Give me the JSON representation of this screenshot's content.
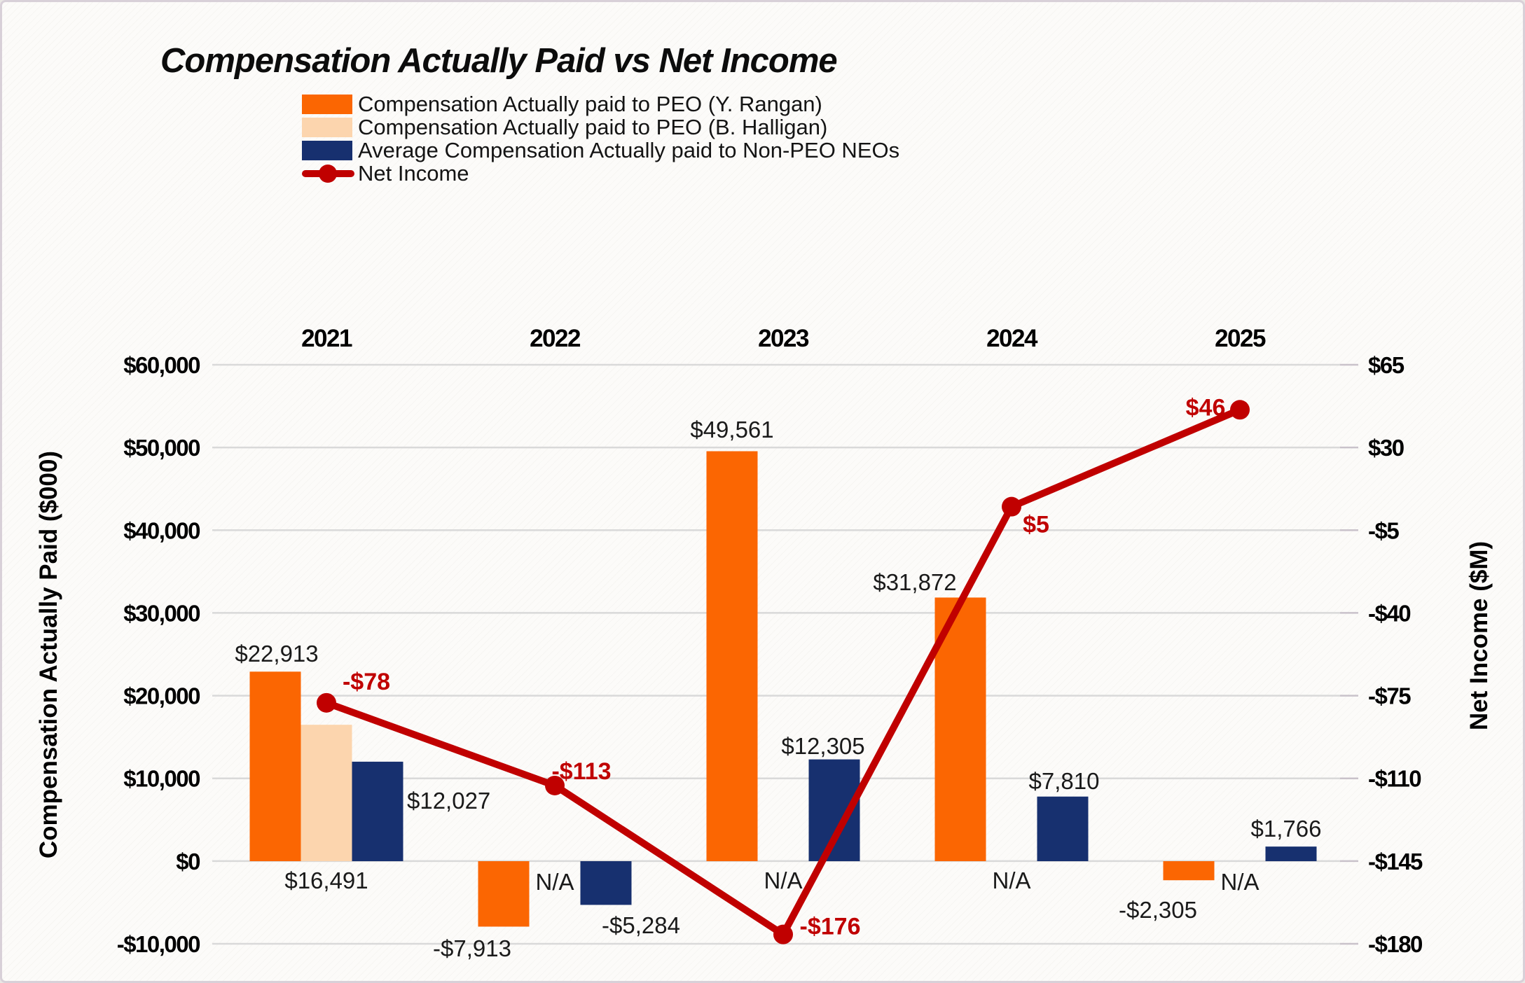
{
  "title": "Compensation Actually Paid vs Net Income",
  "colors": {
    "peo_rangan": "#FB6602",
    "peo_halligan": "#FCD5AE",
    "non_peo_neos": "#17306F",
    "net_income": "#C00000",
    "gridline": "#D9D9D9",
    "label_text": "#1a1a1a"
  },
  "chart_data": {
    "type": "bar+line combo",
    "categories": [
      "2021",
      "2022",
      "2023",
      "2024",
      "2025"
    ],
    "bar_series": [
      {
        "name": "Compensation Actually paid to PEO (Y. Rangan)",
        "color": "#FB6602",
        "values": [
          22913,
          -7913,
          49561,
          31872,
          -2305
        ],
        "labels": [
          "$22,913",
          "-$7,913",
          "$49,561",
          "$31,872",
          "-$2,305"
        ]
      },
      {
        "name": "Compensation Actually paid to PEO (B. Halligan)",
        "color": "#FCD5AE",
        "values": [
          16491,
          null,
          null,
          null,
          null
        ],
        "labels": [
          "$16,491",
          "N/A",
          "N/A",
          "N/A",
          "N/A"
        ]
      },
      {
        "name": "Average Compensation Actually paid to Non-PEO NEOs",
        "color": "#17306F",
        "values": [
          12027,
          -5284,
          12305,
          7810,
          1766
        ],
        "labels": [
          "$12,027",
          "-$5,284",
          "$12,305",
          "$7,810",
          "$1,766"
        ]
      }
    ],
    "line_series": {
      "name": "Net Income",
      "color": "#C00000",
      "values": [
        -78,
        -113,
        -176,
        5,
        46
      ],
      "labels": [
        "-$78",
        "-$113",
        "-$176",
        "$5",
        "$46"
      ]
    },
    "left_axis": {
      "title": "Compensation Actually Paid ($000)",
      "ticks": [
        "$60,000",
        "$50,000",
        "$40,000",
        "$30,000",
        "$20,000",
        "$10,000",
        "$0",
        "-$10,000"
      ],
      "max": 60000,
      "min": -10000
    },
    "right_axis": {
      "title": "Net Income ($M)",
      "ticks": [
        "$65",
        "$30",
        "-$5",
        "-$40",
        "-$75",
        "-$110",
        "-$145",
        "-$180"
      ],
      "max": 65,
      "min": -180
    },
    "grid": "horizontal gridlines on",
    "legend_position": "top, below title"
  }
}
